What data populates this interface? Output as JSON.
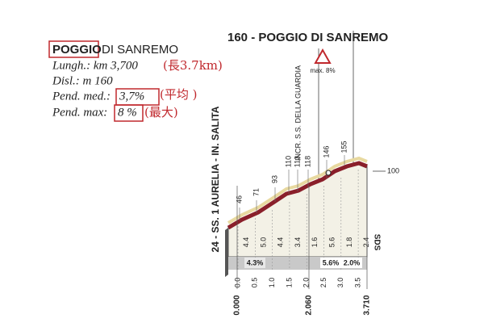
{
  "info": {
    "title_highlight": "POGGIO",
    "title_rest": "DI SANREMO",
    "length": "Lungh.: km 3,700",
    "length_note": "(長3.7km)",
    "climb": "Disl.: m 160",
    "avg_label": "Pend. med.:",
    "avg_value": "3,7%",
    "avg_note": "(平均 )",
    "max_label": "Pend. max:",
    "max_value": "8 %",
    "max_note": "(最大)"
  },
  "profile": {
    "title": "160 - POGGIO DI SANREMO",
    "start_road": "24 - SS. 1 AURELIA - IN. SALITA",
    "junction": "INCR. S.S. DELLA GUARDIA",
    "max_gradient": "max. 8%",
    "altitudes": [
      "46",
      "71",
      "93",
      "110",
      "113",
      "118",
      "146",
      "155"
    ],
    "altitude_ref": "100",
    "gradients": [
      "4.4",
      "5.0",
      "4.4",
      "3.4",
      "1.6",
      "5.6",
      "1.8",
      "2.4"
    ],
    "average_badges": [
      "4.3%",
      "5.6%",
      "2.0%"
    ],
    "km_ticks": [
      "0.0",
      "0.5",
      "1.0",
      "1.5",
      "2.0",
      "2.5",
      "3.0",
      "3.5"
    ],
    "distance_marks": [
      "0.000",
      "2.060",
      "3.710"
    ],
    "logo": "SDS"
  }
}
